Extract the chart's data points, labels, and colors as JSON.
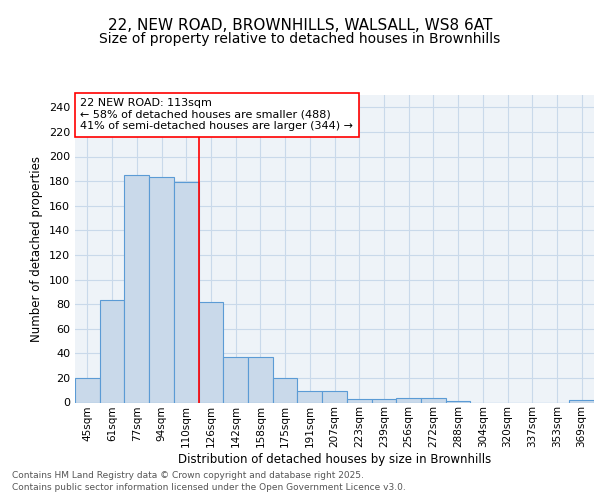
{
  "title1": "22, NEW ROAD, BROWNHILLS, WALSALL, WS8 6AT",
  "title2": "Size of property relative to detached houses in Brownhills",
  "xlabel": "Distribution of detached houses by size in Brownhills",
  "ylabel": "Number of detached properties",
  "categories": [
    "45sqm",
    "61sqm",
    "77sqm",
    "94sqm",
    "110sqm",
    "126sqm",
    "142sqm",
    "158sqm",
    "175sqm",
    "191sqm",
    "207sqm",
    "223sqm",
    "239sqm",
    "256sqm",
    "272sqm",
    "288sqm",
    "304sqm",
    "320sqm",
    "337sqm",
    "353sqm",
    "369sqm"
  ],
  "values": [
    20,
    83,
    185,
    183,
    179,
    82,
    37,
    37,
    20,
    9,
    9,
    3,
    3,
    4,
    4,
    1,
    0,
    0,
    0,
    0,
    2
  ],
  "bar_color": "#c9d9ea",
  "bar_edge_color": "#5b9bd5",
  "annotation_line1": "22 NEW ROAD: 113sqm",
  "annotation_line2": "← 58% of detached houses are smaller (488)",
  "annotation_line3": "41% of semi-detached houses are larger (344) →",
  "annotation_box_color": "white",
  "annotation_box_edge": "red",
  "ylim": [
    0,
    250
  ],
  "yticks": [
    0,
    20,
    40,
    60,
    80,
    100,
    120,
    140,
    160,
    180,
    200,
    220,
    240
  ],
  "grid_color": "#c9d9ea",
  "bg_color": "#eef3f8",
  "footnote1": "Contains HM Land Registry data © Crown copyright and database right 2025.",
  "footnote2": "Contains public sector information licensed under the Open Government Licence v3.0.",
  "title_fontsize": 11,
  "subtitle_fontsize": 10
}
